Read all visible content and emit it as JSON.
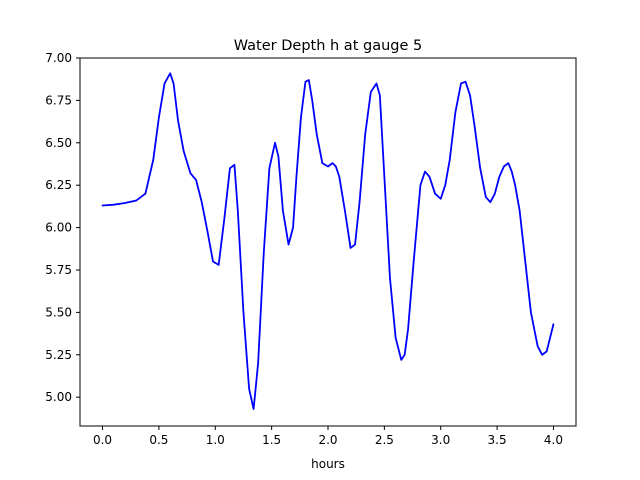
{
  "chart_data": {
    "type": "line",
    "title": "Water Depth h at gauge 5",
    "xlabel": "hours",
    "ylabel": "",
    "xlim": [
      -0.2,
      4.2
    ],
    "ylim": [
      4.83,
      7.0
    ],
    "xticks": [
      0.0,
      0.5,
      1.0,
      1.5,
      2.0,
      2.5,
      3.0,
      3.5,
      4.0
    ],
    "xtick_labels": [
      "0.0",
      "0.5",
      "1.0",
      "1.5",
      "2.0",
      "2.5",
      "3.0",
      "3.5",
      "4.0"
    ],
    "yticks": [
      5.0,
      5.25,
      5.5,
      5.75,
      6.0,
      6.25,
      6.5,
      6.75,
      7.0
    ],
    "ytick_labels": [
      "5.00",
      "5.25",
      "5.50",
      "5.75",
      "6.00",
      "6.25",
      "6.50",
      "6.75",
      "7.00"
    ],
    "grid": false,
    "series": [
      {
        "color": "#0000ff",
        "x": [
          0.0,
          0.1,
          0.2,
          0.3,
          0.38,
          0.45,
          0.5,
          0.55,
          0.6,
          0.63,
          0.67,
          0.72,
          0.78,
          0.83,
          0.88,
          0.93,
          0.98,
          1.03,
          1.08,
          1.13,
          1.17,
          1.2,
          1.25,
          1.3,
          1.34,
          1.38,
          1.43,
          1.48,
          1.53,
          1.56,
          1.6,
          1.65,
          1.69,
          1.72,
          1.76,
          1.8,
          1.83,
          1.86,
          1.9,
          1.95,
          2.0,
          2.04,
          2.07,
          2.1,
          2.15,
          2.2,
          2.24,
          2.28,
          2.33,
          2.38,
          2.43,
          2.46,
          2.5,
          2.55,
          2.6,
          2.65,
          2.68,
          2.71,
          2.76,
          2.82,
          2.86,
          2.9,
          2.95,
          3.0,
          3.04,
          3.08,
          3.13,
          3.18,
          3.22,
          3.26,
          3.3,
          3.35,
          3.4,
          3.44,
          3.48,
          3.52,
          3.56,
          3.6,
          3.63,
          3.66,
          3.7,
          3.75,
          3.8,
          3.86,
          3.9,
          3.94,
          3.97,
          4.0
        ],
        "y": [
          6.13,
          6.135,
          6.145,
          6.16,
          6.2,
          6.4,
          6.65,
          6.85,
          6.91,
          6.85,
          6.63,
          6.45,
          6.32,
          6.28,
          6.15,
          5.98,
          5.8,
          5.78,
          6.05,
          6.35,
          6.37,
          6.1,
          5.5,
          5.05,
          4.93,
          5.2,
          5.85,
          6.35,
          6.5,
          6.42,
          6.1,
          5.9,
          6.0,
          6.3,
          6.65,
          6.86,
          6.87,
          6.75,
          6.55,
          6.38,
          6.36,
          6.38,
          6.36,
          6.3,
          6.1,
          5.88,
          5.9,
          6.15,
          6.55,
          6.8,
          6.85,
          6.78,
          6.3,
          5.7,
          5.35,
          5.22,
          5.25,
          5.4,
          5.8,
          6.25,
          6.33,
          6.3,
          6.2,
          6.17,
          6.25,
          6.4,
          6.68,
          6.85,
          6.86,
          6.78,
          6.6,
          6.35,
          6.18,
          6.15,
          6.2,
          6.3,
          6.36,
          6.38,
          6.33,
          6.25,
          6.1,
          5.8,
          5.5,
          5.3,
          5.25,
          5.27,
          5.35,
          5.43
        ]
      }
    ]
  }
}
